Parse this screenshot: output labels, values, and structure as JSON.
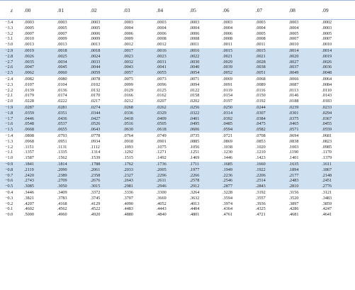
{
  "table": {
    "headers": [
      "z",
      ".00",
      ".01",
      ".02",
      ".03",
      ".04",
      ".05",
      ".06",
      ".07",
      ".08",
      ".09"
    ],
    "rows": [
      [
        "−3.4",
        ".0003",
        ".0003",
        ".0003",
        ".0003",
        ".0003",
        ".0003",
        ".0003",
        ".0003",
        ".0003",
        ".0002"
      ],
      [
        "−3.3",
        ".0005",
        ".0005",
        ".0005",
        ".0004",
        ".0004",
        ".0004",
        ".0004",
        ".0004",
        ".0004",
        ".0003"
      ],
      [
        "−3.2",
        ".0007",
        ".0007",
        ".0006",
        ".0006",
        ".0006",
        ".0006",
        ".0006",
        ".0005",
        ".0005",
        ".0005"
      ],
      [
        "−3.1",
        ".0010",
        ".0009",
        ".0009",
        ".0009",
        ".0008",
        ".0008",
        ".0008",
        ".0008",
        ".0007",
        ".0007"
      ],
      [
        "−3.0",
        ".0013",
        ".0013",
        ".0013",
        ".0012",
        ".0012",
        ".0011",
        ".0011",
        ".0011",
        ".0010",
        ".0010"
      ],
      [
        "−2.9",
        ".0019",
        ".0018",
        ".0018",
        ".0017",
        ".0016",
        ".0016",
        ".0015",
        ".0015",
        ".0014",
        ".0014"
      ],
      [
        "−2.8",
        ".0026",
        ".0025",
        ".0024",
        ".0023",
        ".0023",
        ".0022",
        ".0021",
        ".0021",
        ".0020",
        ".0019"
      ],
      [
        "−2.7",
        ".0035",
        ".0034",
        ".0033",
        ".0032",
        ".0031",
        ".0030",
        ".0029",
        ".0028",
        ".0027",
        ".0026"
      ],
      [
        "−2.6",
        ".0047",
        ".0045",
        ".0044",
        ".0043",
        ".0041",
        ".0040",
        ".0039",
        ".0038",
        ".0037",
        ".0036"
      ],
      [
        "−2.5",
        ".0062",
        ".0060",
        ".0059",
        ".0057",
        ".0055",
        ".0054",
        ".0052",
        ".0051",
        ".0049",
        ".0048"
      ],
      [
        "−2.4",
        ".0082",
        ".0080",
        ".0078",
        ".0075",
        ".0073",
        ".0071",
        ".0069",
        ".0068",
        ".0066",
        ".0064"
      ],
      [
        "−2.3",
        ".0107",
        ".0104",
        ".0102",
        ".0099",
        ".0096",
        ".0094",
        ".0091",
        ".0089",
        ".0087",
        ".0084"
      ],
      [
        "−2.2",
        ".0139",
        ".0136",
        ".0132",
        ".0129",
        ".0125",
        ".0122",
        ".0119",
        ".0116",
        ".0113",
        ".0110"
      ],
      [
        "−2.1",
        ".0179",
        ".0174",
        ".0170",
        ".0166",
        ".0162",
        ".0158",
        ".0154",
        ".0150",
        ".0146",
        ".0143"
      ],
      [
        "−2.0",
        ".0228",
        ".0222",
        ".0217",
        ".0212",
        ".0207",
        ".0202",
        ".0197",
        ".0192",
        ".0188",
        ".0183"
      ],
      [
        "−1.9",
        ".0287",
        ".0281",
        ".0274",
        ".0268",
        ".0262",
        ".0256",
        ".0250",
        ".0244",
        ".0239",
        ".0233"
      ],
      [
        "−1.8",
        ".0359",
        ".0351",
        ".0344",
        ".0336",
        ".0329",
        ".0322",
        ".0314",
        ".0307",
        ".0301",
        ".0294"
      ],
      [
        "−1.7",
        ".0446",
        ".0436",
        ".0427",
        ".0418",
        ".0409",
        ".0401",
        ".0392",
        ".0384",
        ".0375",
        ".0367"
      ],
      [
        "−1.6",
        ".0548",
        ".0537",
        ".0526",
        ".0516",
        ".0505",
        ".0495",
        ".0485",
        ".0475",
        ".0465",
        ".0455"
      ],
      [
        "−1.5",
        ".0668",
        ".0655",
        ".0643",
        ".0630",
        ".0618",
        ".0606",
        ".0594",
        ".0582",
        ".0571",
        ".0559"
      ],
      [
        "−1.4",
        ".0808",
        ".0793",
        ".0778",
        ".0764",
        ".0749",
        ".0735",
        ".0721",
        ".0708",
        ".0694",
        ".0681"
      ],
      [
        "−1.3",
        ".0968",
        ".0951",
        ".0934",
        ".0918",
        ".0901",
        ".0885",
        ".0869",
        ".0853",
        ".0838",
        ".0823"
      ],
      [
        "−1.2",
        ".1151",
        ".1131",
        ".1112",
        ".1093",
        ".1075",
        ".1056",
        ".1038",
        ".1020",
        ".1003",
        ".0985"
      ],
      [
        "−1.1",
        ".1357",
        ".1335",
        ".1314",
        ".1292",
        ".1271",
        ".1251",
        ".1230",
        ".1210",
        ".1190",
        ".1170"
      ],
      [
        "−1.0",
        ".1587",
        ".1562",
        ".1539",
        ".1515",
        ".1492",
        ".1469",
        ".1446",
        ".1423",
        ".1401",
        ".1379"
      ],
      [
        "−0.9",
        ".1841",
        ".1814",
        ".1788",
        ".1762",
        ".1736",
        ".1711",
        ".1685",
        ".1660",
        ".1635",
        ".1611"
      ],
      [
        "−0.8",
        ".2119",
        ".2090",
        ".2061",
        ".2033",
        ".2005",
        ".1977",
        ".1949",
        ".1922",
        ".1894",
        ".1867"
      ],
      [
        "−0.7",
        ".2420",
        ".2389",
        ".2358",
        ".2327",
        ".2296",
        ".2266",
        ".2236",
        ".2206",
        ".2177",
        ".2148"
      ],
      [
        "−0.6",
        ".2743",
        ".2709",
        ".2676",
        ".2643",
        ".2611",
        ".2578",
        ".2546",
        ".2514",
        ".2483",
        ".2451"
      ],
      [
        "−0.5",
        ".3085",
        ".3050",
        ".3015",
        ".2981",
        ".2946",
        ".2912",
        ".2877",
        ".2843",
        ".2810",
        ".2776"
      ],
      [
        "−0.4",
        ".3446",
        ".3409",
        ".3372",
        ".3336",
        ".3300",
        ".3264",
        ".3228",
        ".3192",
        ".3156",
        ".3121"
      ],
      [
        "−0.3",
        ".3821",
        ".3783",
        ".3745",
        ".3707",
        ".3669",
        ".3632",
        ".3594",
        ".3557",
        ".3520",
        ".3483"
      ],
      [
        "−0.2",
        ".4207",
        ".4168",
        ".4129",
        ".4090",
        ".4052",
        ".4013",
        ".3974",
        ".3936",
        ".3897",
        ".3859"
      ],
      [
        "−0.1",
        ".4602",
        ".4562",
        ".4522",
        ".4483",
        ".4443",
        ".4404",
        ".4364",
        ".4325",
        ".4286",
        ".4247"
      ],
      [
        "−0.0",
        ".5000",
        ".4960",
        ".4920",
        ".4880",
        ".4840",
        ".4801",
        ".4761",
        ".4721",
        ".4681",
        ".4641"
      ]
    ]
  },
  "colors": {
    "band_fill": "#cfe0f1",
    "rule": "#9ab7d8"
  }
}
